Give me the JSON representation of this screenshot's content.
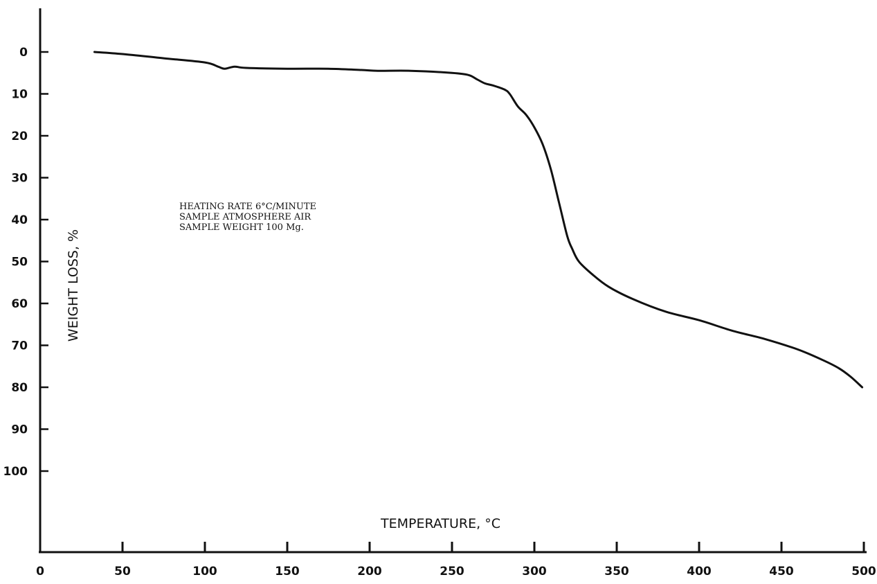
{
  "chart_data": {
    "type": "line",
    "xlabel": "TEMPERATURE, °C",
    "ylabel": "WEIGHT LOSS, %",
    "xlim": [
      0,
      500
    ],
    "ylim": [
      0,
      100
    ],
    "y_inverted": true,
    "grid": false,
    "x_ticks": [
      "0",
      "50",
      "100",
      "150",
      "200",
      "250",
      "300",
      "350",
      "400",
      "450",
      "500"
    ],
    "y_ticks": [
      "0",
      "10",
      "20",
      "30",
      "40",
      "50",
      "60",
      "70",
      "80",
      "90",
      "100"
    ],
    "annotations": [
      "HEATING RATE 6°C/MINUTE",
      "SAMPLE ATMOSPHERE AIR",
      "SAMPLE WEIGHT 100 Mg."
    ],
    "series": [
      {
        "x": [
          33,
          50,
          75,
          100,
          108,
          112,
          118,
          125,
          150,
          175,
          195,
          205,
          225,
          250,
          260,
          265,
          270,
          275,
          282,
          285,
          290,
          295,
          300,
          305,
          310,
          315,
          320,
          323,
          327,
          335,
          345,
          360,
          380,
          400,
          420,
          440,
          460,
          475,
          485,
          492,
          499
        ],
        "y": [
          0,
          0.5,
          1.5,
          2.5,
          3.5,
          4,
          3.5,
          3.8,
          4,
          4,
          4.3,
          4.5,
          4.5,
          5,
          5.5,
          6.5,
          7.5,
          8,
          9,
          10,
          13,
          15,
          18,
          22,
          28,
          36,
          44,
          47,
          50,
          53,
          56,
          59,
          62,
          64,
          66.5,
          68.5,
          71,
          73.5,
          75.5,
          77.5,
          80
        ]
      }
    ]
  }
}
